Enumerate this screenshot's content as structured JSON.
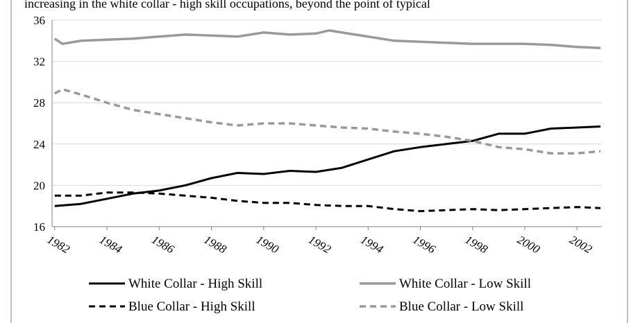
{
  "caption": "increasing in the white collar - high skill occupations, beyond the point of typical",
  "chart_data": {
    "type": "line",
    "title": "",
    "xlabel": "",
    "ylabel": "",
    "xlim": [
      1981.9,
      2002.95
    ],
    "ylim": [
      16,
      36
    ],
    "yticks": [
      16,
      20,
      24,
      28,
      32,
      36
    ],
    "xticks": [
      1982,
      1984,
      1986,
      1988,
      1990,
      1992,
      1994,
      1996,
      1998,
      2000,
      2002
    ],
    "grid": true,
    "legend_position": "bottom",
    "series": [
      {
        "name": "White Collar - High Skill",
        "color": "#000000",
        "style": "solid",
        "x": [
          1982,
          1983,
          1984,
          1985,
          1986,
          1987,
          1988,
          1989,
          1990,
          1991,
          1992,
          1993,
          1994,
          1995,
          1996,
          1997,
          1998,
          1999,
          2000,
          2001,
          2002,
          2002.9
        ],
        "y": [
          18.0,
          18.2,
          18.7,
          19.2,
          19.5,
          20.0,
          20.7,
          21.2,
          21.1,
          21.4,
          21.3,
          21.7,
          22.5,
          23.3,
          23.7,
          24.0,
          24.3,
          25.0,
          25.0,
          25.5,
          25.6,
          25.7
        ]
      },
      {
        "name": "White Collar - Low Skill",
        "color": "#999999",
        "style": "solid",
        "x": [
          1982,
          1982.3,
          1983,
          1984,
          1985,
          1986,
          1987,
          1988,
          1989,
          1990,
          1991,
          1992,
          1992.5,
          1993,
          1994,
          1995,
          1996,
          1997,
          1998,
          1999,
          2000,
          2001,
          2002,
          2002.9
        ],
        "y": [
          34.2,
          33.7,
          34.0,
          34.1,
          34.2,
          34.4,
          34.6,
          34.5,
          34.4,
          34.8,
          34.6,
          34.7,
          35.0,
          34.8,
          34.4,
          34.0,
          33.9,
          33.8,
          33.7,
          33.7,
          33.7,
          33.6,
          33.4,
          33.3
        ]
      },
      {
        "name": "Blue Collar - High Skill",
        "color": "#000000",
        "style": "dashed",
        "x": [
          1982,
          1983,
          1984,
          1985,
          1986,
          1987,
          1988,
          1989,
          1990,
          1991,
          1992,
          1993,
          1994,
          1995,
          1996,
          1997,
          1998,
          1999,
          2000,
          2001,
          2002,
          2002.9
        ],
        "y": [
          19.0,
          19.0,
          19.3,
          19.3,
          19.2,
          19.0,
          18.8,
          18.5,
          18.3,
          18.3,
          18.1,
          18.0,
          18.0,
          17.7,
          17.5,
          17.6,
          17.7,
          17.6,
          17.7,
          17.8,
          17.9,
          17.8
        ]
      },
      {
        "name": "Blue Collar - Low Skill",
        "color": "#999999",
        "style": "dashed",
        "x": [
          1982,
          1982.3,
          1983,
          1984,
          1985,
          1986,
          1987,
          1988,
          1989,
          1990,
          1991,
          1992,
          1993,
          1994,
          1995,
          1996,
          1997,
          1998,
          1999,
          2000,
          2001,
          2002,
          2002.9
        ],
        "y": [
          28.9,
          29.3,
          28.8,
          28.0,
          27.3,
          26.9,
          26.5,
          26.1,
          25.8,
          26.0,
          26.0,
          25.8,
          25.6,
          25.5,
          25.2,
          25.0,
          24.7,
          24.3,
          23.7,
          23.5,
          23.1,
          23.1,
          23.3
        ]
      }
    ]
  }
}
